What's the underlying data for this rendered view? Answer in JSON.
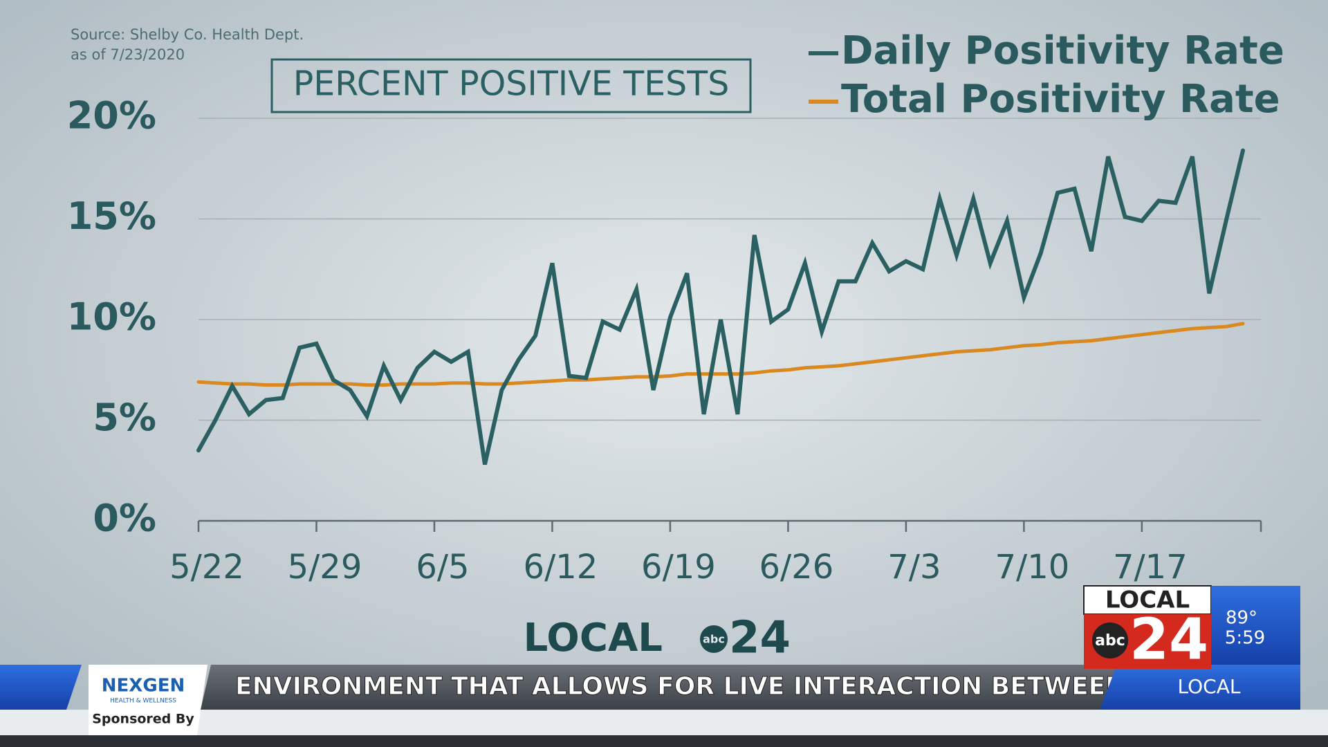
{
  "chart_data": {
    "type": "line",
    "source": "Source: Shelby Co. Health Dept.",
    "note": "as of 7/23/2020",
    "title": "PERCENT POSITIVE TESTS",
    "categories": [
      "5/22",
      null,
      null,
      null,
      null,
      null,
      null,
      "5/29",
      null,
      null,
      null,
      null,
      null,
      null,
      "6/5",
      null,
      null,
      null,
      null,
      null,
      null,
      "6/12",
      null,
      null,
      null,
      null,
      null,
      null,
      "6/19",
      null,
      null,
      null,
      null,
      null,
      null,
      "6/26",
      null,
      null,
      null,
      null,
      null,
      null,
      "7/3",
      null,
      null,
      null,
      null,
      null,
      null,
      "7/10",
      null,
      null,
      null,
      null,
      null,
      null,
      "7/17",
      null,
      null,
      null,
      null,
      null,
      null
    ],
    "series": [
      {
        "name": "Daily Positivity Rate",
        "color": "#2b6062",
        "values": [
          3.5,
          5.0,
          6.7,
          5.3,
          6.0,
          6.1,
          8.6,
          8.8,
          7.0,
          6.5,
          5.2,
          7.7,
          6.0,
          7.6,
          8.4,
          7.9,
          8.4,
          2.8,
          6.5,
          8.0,
          9.2,
          12.8,
          7.2,
          7.1,
          9.9,
          9.5,
          11.5,
          6.5,
          10.1,
          12.3,
          5.3,
          10.0,
          5.3,
          14.2,
          9.9,
          10.5,
          12.8,
          9.4,
          11.9,
          11.9,
          13.8,
          12.4,
          12.9,
          12.5,
          16.0,
          13.2,
          16.0,
          12.8,
          14.9,
          11.1,
          13.3,
          16.3,
          16.5,
          13.4,
          18.1,
          15.1,
          14.9,
          15.9,
          15.8,
          18.1,
          11.3,
          14.9,
          18.4
        ]
      },
      {
        "name": "Total Positivity Rate",
        "color": "#d9891f",
        "values": [
          6.9,
          6.85,
          6.8,
          6.8,
          6.75,
          6.75,
          6.8,
          6.8,
          6.8,
          6.8,
          6.75,
          6.75,
          6.8,
          6.8,
          6.8,
          6.85,
          6.85,
          6.8,
          6.8,
          6.85,
          6.9,
          6.95,
          7.0,
          7.0,
          7.05,
          7.1,
          7.15,
          7.15,
          7.2,
          7.3,
          7.3,
          7.3,
          7.3,
          7.35,
          7.45,
          7.5,
          7.6,
          7.65,
          7.7,
          7.8,
          7.9,
          8.0,
          8.1,
          8.2,
          8.3,
          8.4,
          8.45,
          8.5,
          8.6,
          8.7,
          8.75,
          8.85,
          8.9,
          8.95,
          9.05,
          9.15,
          9.25,
          9.35,
          9.45,
          9.55,
          9.6,
          9.65,
          9.8
        ]
      }
    ],
    "ylim": [
      0,
      20
    ],
    "yticks": [
      {
        "value": 0,
        "label": "0%"
      },
      {
        "value": 5,
        "label": "5%"
      },
      {
        "value": 10,
        "label": "10%"
      },
      {
        "value": 15,
        "label": "15%"
      },
      {
        "value": 20,
        "label": "20%"
      }
    ],
    "grid": true,
    "legend": "top-right"
  },
  "broadcast": {
    "logo_text": "LOCAL",
    "logo_network": "abc",
    "logo_number": "24",
    "sponsor": "NEXGEN",
    "sponsor_sub": "HEALTH & WELLNESS",
    "sponsored_by": "Sponsored By",
    "ticker": "ENVIRONMENT THAT ALLOWS FOR LIVE INTERACTION BETWEEN",
    "ticker_tag": "LOCAL",
    "bug_top": "LOCAL",
    "bug_network": "abc",
    "bug_number": "24",
    "temperature": "89°",
    "time": "5:59"
  }
}
